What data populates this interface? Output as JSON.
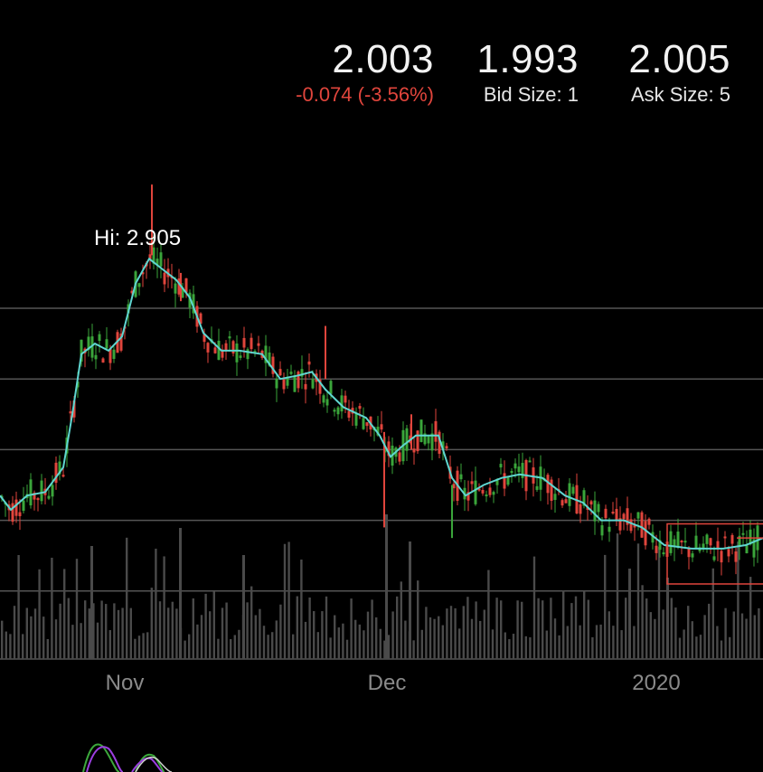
{
  "quote": {
    "last": "2.003",
    "change": "-0.074 (-3.56%)",
    "bid": "1.993",
    "bid_size": "Bid Size: 1",
    "ask": "2.005",
    "ask_size": "Ask Size: 5"
  },
  "hi_label": "Hi: 2.905",
  "colors": {
    "background": "#000000",
    "up": "#3aa53a",
    "down": "#e0453c",
    "moving_average": "#5fd6d0",
    "grid": "#555555",
    "volume": "#4a4a4a",
    "indicator_a": "#3ca83c",
    "indicator_b": "#9b3fe0",
    "indicator_c": "#cfcfcf"
  },
  "chart_data": {
    "type": "line",
    "x_ticks": [
      "Nov",
      "Dec",
      "2020"
    ],
    "y_gridlines": [
      2.6,
      2.4,
      2.2,
      2.0,
      1.8
    ],
    "ylim": [
      1.7,
      3.0
    ],
    "moving_average": [
      [
        0,
        2.07
      ],
      [
        12,
        2.03
      ],
      [
        30,
        2.07
      ],
      [
        50,
        2.08
      ],
      [
        70,
        2.15
      ],
      [
        80,
        2.3
      ],
      [
        90,
        2.47
      ],
      [
        105,
        2.5
      ],
      [
        120,
        2.48
      ],
      [
        135,
        2.52
      ],
      [
        150,
        2.67
      ],
      [
        165,
        2.74
      ],
      [
        180,
        2.71
      ],
      [
        195,
        2.68
      ],
      [
        210,
        2.63
      ],
      [
        225,
        2.53
      ],
      [
        245,
        2.48
      ],
      [
        265,
        2.48
      ],
      [
        290,
        2.47
      ],
      [
        310,
        2.4
      ],
      [
        330,
        2.41
      ],
      [
        345,
        2.42
      ],
      [
        360,
        2.37
      ],
      [
        380,
        2.32
      ],
      [
        405,
        2.29
      ],
      [
        420,
        2.24
      ],
      [
        432,
        2.18
      ],
      [
        445,
        2.21
      ],
      [
        460,
        2.24
      ],
      [
        485,
        2.24
      ],
      [
        500,
        2.12
      ],
      [
        515,
        2.07
      ],
      [
        535,
        2.1
      ],
      [
        555,
        2.12
      ],
      [
        575,
        2.13
      ],
      [
        600,
        2.12
      ],
      [
        625,
        2.07
      ],
      [
        645,
        2.05
      ],
      [
        665,
        2.0
      ],
      [
        690,
        2.0
      ],
      [
        710,
        1.98
      ],
      [
        735,
        1.93
      ],
      [
        765,
        1.92
      ],
      [
        800,
        1.92
      ],
      [
        825,
        1.93
      ],
      [
        844,
        1.95
      ]
    ],
    "candle_range": [
      2.0,
      2.9
    ],
    "volume_level": "low-to-moderate"
  }
}
